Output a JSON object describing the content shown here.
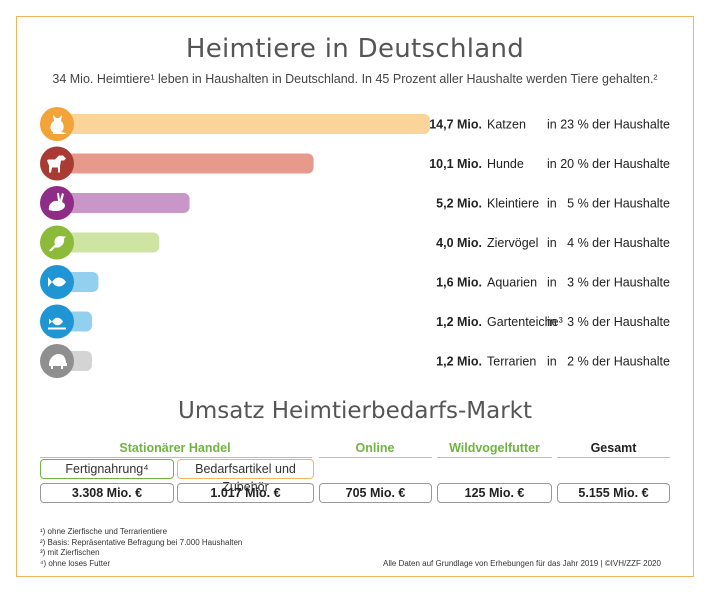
{
  "title": "Heimtiere in Deutschland",
  "subtitle": "34 Mio. Heimtiere¹ leben in Haushalten in Deutschland. In 45 Prozent aller Haushalte werden Tiere gehalten.²",
  "chart_data": {
    "type": "bar",
    "orientation": "horizontal",
    "unit": "Mio.",
    "rows": [
      {
        "value": 14.7,
        "value_label": "14,7 Mio.",
        "category": "Katzen",
        "share": "in 23 % der Haushalte",
        "color": "#fbd49a",
        "icon_color": "#f2a33a",
        "icon": "cat-icon"
      },
      {
        "value": 10.1,
        "value_label": "10,1 Mio.",
        "category": "Hunde",
        "share": "in 20 % der Haushalte",
        "color": "#e69a8c",
        "icon_color": "#a93b35",
        "icon": "dog-icon"
      },
      {
        "value": 5.2,
        "value_label": "5,2 Mio.",
        "category": "Kleintiere",
        "share": "in   5 % der Haushalte",
        "color": "#c996c8",
        "icon_color": "#8e2c86",
        "icon": "rabbit-icon"
      },
      {
        "value": 4.0,
        "value_label": "4,0 Mio.",
        "category": "Ziervögel",
        "share": "in   4 % der Haushalte",
        "color": "#cde4a2",
        "icon_color": "#8cba3a",
        "icon": "bird-icon"
      },
      {
        "value": 1.6,
        "value_label": "1,6 Mio.",
        "category": "Aquarien",
        "share": "in   3 % der Haushalte",
        "color": "#93d0f0",
        "icon_color": "#1f95d4",
        "icon": "fish-icon"
      },
      {
        "value": 1.2,
        "value_label": "1,2 Mio.",
        "category": "Gartenteiche³",
        "share": "in   3 % der Haushalte",
        "color": "#93d0f0",
        "icon_color": "#1f95d4",
        "icon": "pond-fish-icon"
      },
      {
        "value": 1.2,
        "value_label": "1,2 Mio.",
        "category": "Terrarien",
        "share": "in   2 % der Haushalte",
        "color": "#d4d4d4",
        "icon_color": "#8f8f8f",
        "icon": "turtle-icon"
      }
    ]
  },
  "market": {
    "title": "Umsatz Heimtierbedarfs-Markt",
    "columns": [
      {
        "label": "Stationärer Handel",
        "color": "#6fb53f"
      },
      {
        "label": "Online",
        "color": "#6fb53f"
      },
      {
        "label": "Wildvogelfutter",
        "color": "#6fb53f"
      },
      {
        "label": "Gesamt",
        "color": "#222222"
      }
    ],
    "subcategories": [
      {
        "label": "Fertignahrung⁴",
        "border": "#6fb53f"
      },
      {
        "label": "Bedarfsartikel und Zubehör",
        "border": "#f2b55e"
      }
    ],
    "values": [
      "3.308 Mio. €",
      "1.017 Mio. €",
      "705 Mio. €",
      "125 Mio. €",
      "5.155 Mio. €"
    ]
  },
  "footnotes": [
    "¹) ohne Zierfische und Terrarientiere",
    "²) Basis: Repräsentative Befragung bei 7.000 Haushalten",
    "³) mit Zierfischen",
    "⁴) ohne loses Futter"
  ],
  "source": "Alle Daten auf Grundlage von Erhebungen für das Jahr 2019 | ©IVH/ZZF 2020"
}
